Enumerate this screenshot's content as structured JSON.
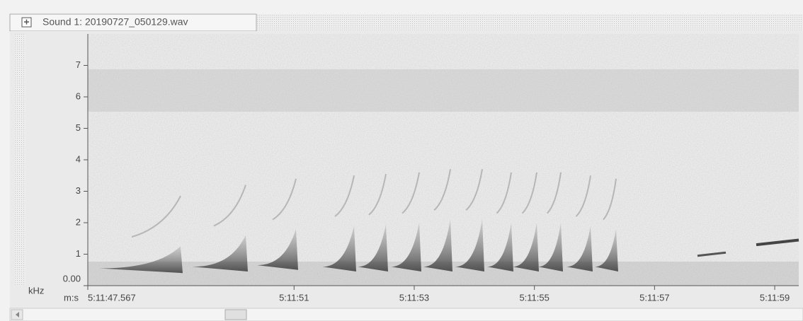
{
  "window": {
    "title": "Sound 1: 20190727_050129.wav"
  },
  "chart_data": {
    "type": "spectrogram",
    "ylabel": "kHz",
    "xlabel": "m:s",
    "ylim": [
      0,
      8
    ],
    "yticks": [
      {
        "value": 0,
        "label": "0.00"
      },
      1,
      2,
      3,
      4,
      5,
      6,
      7
    ],
    "xlim": [
      47.567,
      59.4
    ],
    "xticks": [
      {
        "value": 47.567,
        "label": "5:11:47.567"
      },
      {
        "value": 51,
        "label": "5:11:51"
      },
      {
        "value": 53,
        "label": "5:11:53"
      },
      {
        "value": 55,
        "label": "5:11:55"
      },
      {
        "value": 57,
        "label": "5:11:57"
      },
      {
        "value": 59,
        "label": "5:11:59"
      }
    ]
  }
}
